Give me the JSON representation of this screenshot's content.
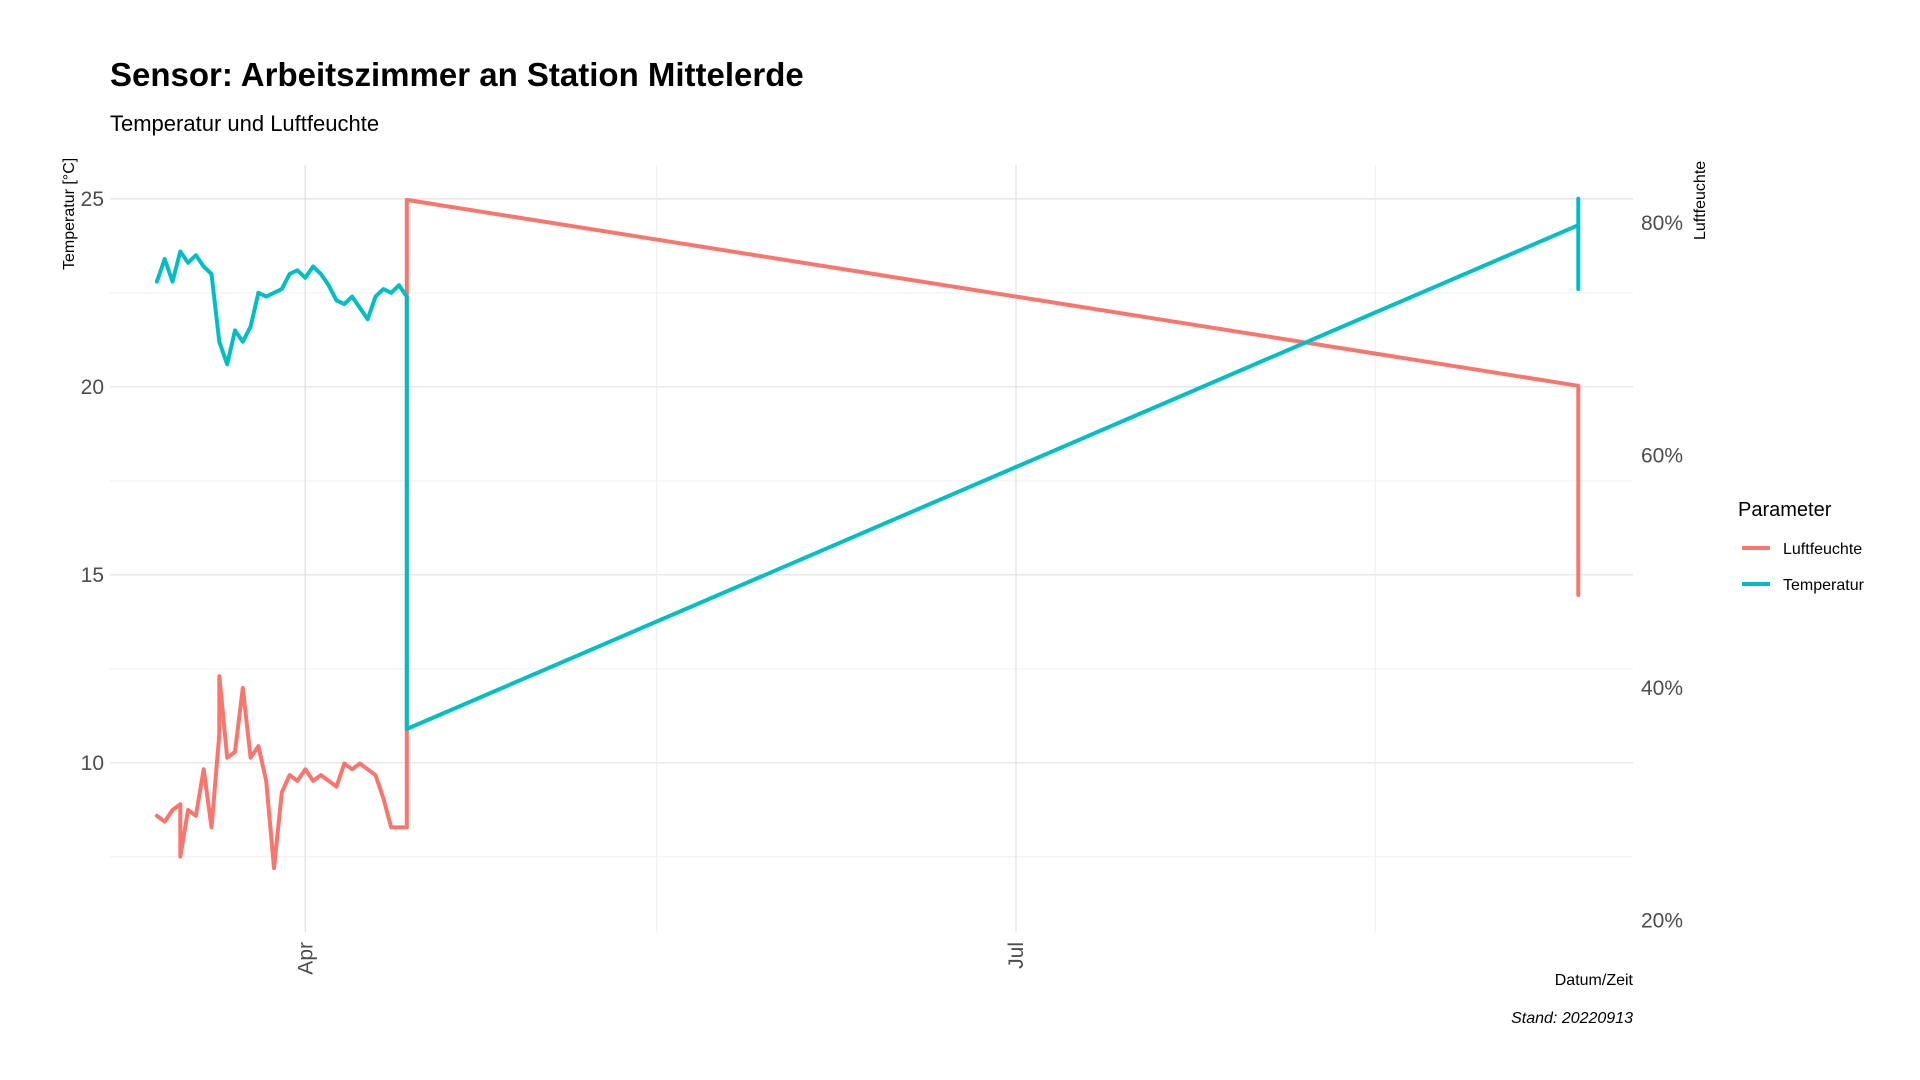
{
  "chart_data": {
    "type": "line",
    "title": "Sensor: Arbeitszimmer an Station Mittelerde",
    "subtitle": "Temperatur und Luftfeuchte",
    "xlabel": "Datum/Zeit",
    "ylabel": "Temperatur [°C]",
    "ylabel_right": "Luftfeuchte",
    "caption": "Stand: 20220913",
    "x_ticks": [
      "Apr",
      "Jul"
    ],
    "y_ticks": [
      10,
      15,
      20,
      25
    ],
    "y_ticks_right": [
      "20%",
      "40%",
      "60%",
      "80%"
    ],
    "ylim": [
      5.5,
      25.9
    ],
    "ylim_right": [
      0.19,
      0.85
    ],
    "xlim": [
      "2022-03-07",
      "2022-09-18"
    ],
    "grid": true,
    "legend_title": "Parameter",
    "legend_position": "right",
    "series": [
      {
        "name": "Luftfeuchte",
        "color": "#F8766D",
        "axis": "right",
        "points": [
          [
            "2022-03-13",
            0.29
          ],
          [
            "2022-03-14",
            0.285
          ],
          [
            "2022-03-15",
            0.295
          ],
          [
            "2022-03-16",
            0.3
          ],
          [
            "2022-03-16",
            0.255
          ],
          [
            "2022-03-17",
            0.295
          ],
          [
            "2022-03-18",
            0.29
          ],
          [
            "2022-03-19",
            0.33
          ],
          [
            "2022-03-20",
            0.28
          ],
          [
            "2022-03-21",
            0.36
          ],
          [
            "2022-03-21",
            0.41
          ],
          [
            "2022-03-22",
            0.34
          ],
          [
            "2022-03-23",
            0.345
          ],
          [
            "2022-03-24",
            0.4
          ],
          [
            "2022-03-25",
            0.34
          ],
          [
            "2022-03-26",
            0.35
          ],
          [
            "2022-03-27",
            0.32
          ],
          [
            "2022-03-28",
            0.245
          ],
          [
            "2022-03-29",
            0.31
          ],
          [
            "2022-03-30",
            0.325
          ],
          [
            "2022-03-31",
            0.32
          ],
          [
            "2022-04-01",
            0.33
          ],
          [
            "2022-04-02",
            0.32
          ],
          [
            "2022-04-03",
            0.325
          ],
          [
            "2022-04-04",
            0.32
          ],
          [
            "2022-04-05",
            0.315
          ],
          [
            "2022-04-06",
            0.335
          ],
          [
            "2022-04-07",
            0.33
          ],
          [
            "2022-04-08",
            0.335
          ],
          [
            "2022-04-09",
            0.33
          ],
          [
            "2022-04-10",
            0.325
          ],
          [
            "2022-04-11",
            0.305
          ],
          [
            "2022-04-12",
            0.28
          ],
          [
            "2022-04-13",
            0.28
          ],
          [
            "2022-04-14",
            0.28
          ],
          [
            "2022-04-14",
            0.82
          ],
          [
            "2022-09-11",
            0.66
          ],
          [
            "2022-09-11",
            0.58
          ],
          [
            "2022-09-11",
            0.48
          ],
          [
            "2022-09-11",
            0.52
          ]
        ]
      },
      {
        "name": "Temperatur",
        "color": "#00BFC4",
        "axis": "left",
        "points": [
          [
            "2022-03-13",
            22.8
          ],
          [
            "2022-03-14",
            23.4
          ],
          [
            "2022-03-15",
            22.8
          ],
          [
            "2022-03-16",
            23.6
          ],
          [
            "2022-03-17",
            23.3
          ],
          [
            "2022-03-18",
            23.5
          ],
          [
            "2022-03-19",
            23.2
          ],
          [
            "2022-03-20",
            23.0
          ],
          [
            "2022-03-21",
            21.2
          ],
          [
            "2022-03-22",
            20.6
          ],
          [
            "2022-03-23",
            21.5
          ],
          [
            "2022-03-24",
            21.2
          ],
          [
            "2022-03-25",
            21.6
          ],
          [
            "2022-03-26",
            22.5
          ],
          [
            "2022-03-27",
            22.4
          ],
          [
            "2022-03-28",
            22.5
          ],
          [
            "2022-03-29",
            22.6
          ],
          [
            "2022-03-30",
            23.0
          ],
          [
            "2022-03-31",
            23.1
          ],
          [
            "2022-04-01",
            22.9
          ],
          [
            "2022-04-02",
            23.2
          ],
          [
            "2022-04-03",
            23.0
          ],
          [
            "2022-04-04",
            22.7
          ],
          [
            "2022-04-05",
            22.3
          ],
          [
            "2022-04-06",
            22.2
          ],
          [
            "2022-04-07",
            22.4
          ],
          [
            "2022-04-08",
            22.1
          ],
          [
            "2022-04-09",
            21.8
          ],
          [
            "2022-04-10",
            22.4
          ],
          [
            "2022-04-11",
            22.6
          ],
          [
            "2022-04-12",
            22.5
          ],
          [
            "2022-04-13",
            22.7
          ],
          [
            "2022-04-14",
            22.4
          ],
          [
            "2022-04-14",
            10.9
          ],
          [
            "2022-09-11",
            24.3
          ],
          [
            "2022-09-11",
            25.0
          ],
          [
            "2022-09-11",
            22.6
          ],
          [
            "2022-09-11",
            22.6
          ]
        ]
      }
    ]
  }
}
